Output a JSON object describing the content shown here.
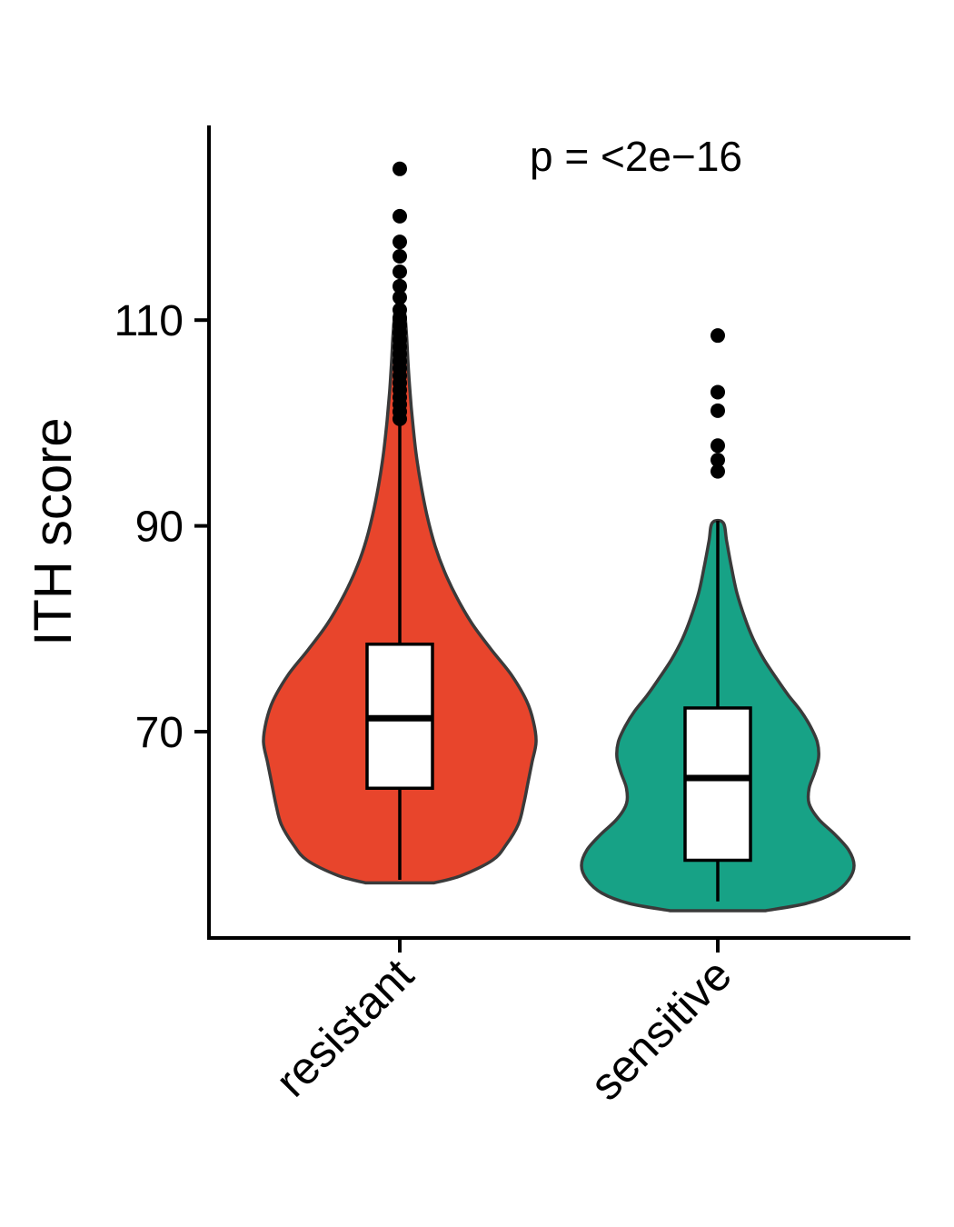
{
  "chart_data": {
    "type": "violin",
    "title": "",
    "annotation": "p = <2e−16",
    "ylabel": "ITH score",
    "xlabel": "",
    "yticks": [
      70,
      90,
      110
    ],
    "ylim": [
      50,
      127
    ],
    "categories": [
      "resistant",
      "sensitive"
    ],
    "legend": null,
    "grid": false,
    "groups": [
      {
        "name": "resistant",
        "fill_color": "#E8452C",
        "outline_color": "#3A3A3A",
        "box": {
          "whisker_low": 55.6,
          "q1": 64.5,
          "median": 71.3,
          "q3": 78.5,
          "whisker_high": 99.8
        },
        "outliers": [
          124.7,
          120.1,
          117.6,
          116.2,
          114.7,
          113.3,
          112.2,
          111.0,
          110.2,
          109.5,
          108.8,
          108.1,
          107.4,
          106.7,
          106.0,
          105.3,
          104.6,
          103.9,
          103.2,
          102.5,
          101.8,
          101.1,
          100.4
        ],
        "violin_profile": [
          [
            55.3,
            0.25
          ],
          [
            56.0,
            0.45
          ],
          [
            57.5,
            0.68
          ],
          [
            59.0,
            0.78
          ],
          [
            61.0,
            0.87
          ],
          [
            63.0,
            0.91
          ],
          [
            65.0,
            0.94
          ],
          [
            67.0,
            0.97
          ],
          [
            69.0,
            1.0
          ],
          [
            71.0,
            0.98
          ],
          [
            73.0,
            0.93
          ],
          [
            75.5,
            0.82
          ],
          [
            78.0,
            0.67
          ],
          [
            80.5,
            0.53
          ],
          [
            83.0,
            0.42
          ],
          [
            85.5,
            0.33
          ],
          [
            88.0,
            0.26
          ],
          [
            91.0,
            0.2
          ],
          [
            94.0,
            0.155
          ],
          [
            97.0,
            0.12
          ],
          [
            100.0,
            0.095
          ],
          [
            103.0,
            0.075
          ],
          [
            106.0,
            0.06
          ],
          [
            108.5,
            0.05
          ],
          [
            110.5,
            0.038
          ],
          [
            111.5,
            0.02
          ]
        ]
      },
      {
        "name": "sensitive",
        "fill_color": "#17A286",
        "outline_color": "#3A3A3A",
        "box": {
          "whisker_low": 53.5,
          "q1": 57.5,
          "median": 65.5,
          "q3": 72.3,
          "whisker_high": 90.5
        },
        "outliers": [
          108.5,
          103.0,
          101.2,
          97.8,
          96.4,
          95.3
        ],
        "violin_profile": [
          [
            52.6,
            0.35
          ],
          [
            53.3,
            0.65
          ],
          [
            54.3,
            0.85
          ],
          [
            55.6,
            0.96
          ],
          [
            57.0,
            1.0
          ],
          [
            58.5,
            0.96
          ],
          [
            60.0,
            0.86
          ],
          [
            61.5,
            0.74
          ],
          [
            63.0,
            0.67
          ],
          [
            64.5,
            0.67
          ],
          [
            66.0,
            0.71
          ],
          [
            67.5,
            0.74
          ],
          [
            69.0,
            0.73
          ],
          [
            70.5,
            0.68
          ],
          [
            72.0,
            0.61
          ],
          [
            73.5,
            0.52
          ],
          [
            75.0,
            0.44
          ],
          [
            77.0,
            0.34
          ],
          [
            79.0,
            0.26
          ],
          [
            81.0,
            0.2
          ],
          [
            83.5,
            0.14
          ],
          [
            86.0,
            0.1
          ],
          [
            88.5,
            0.065
          ],
          [
            90.3,
            0.04
          ]
        ]
      }
    ]
  }
}
